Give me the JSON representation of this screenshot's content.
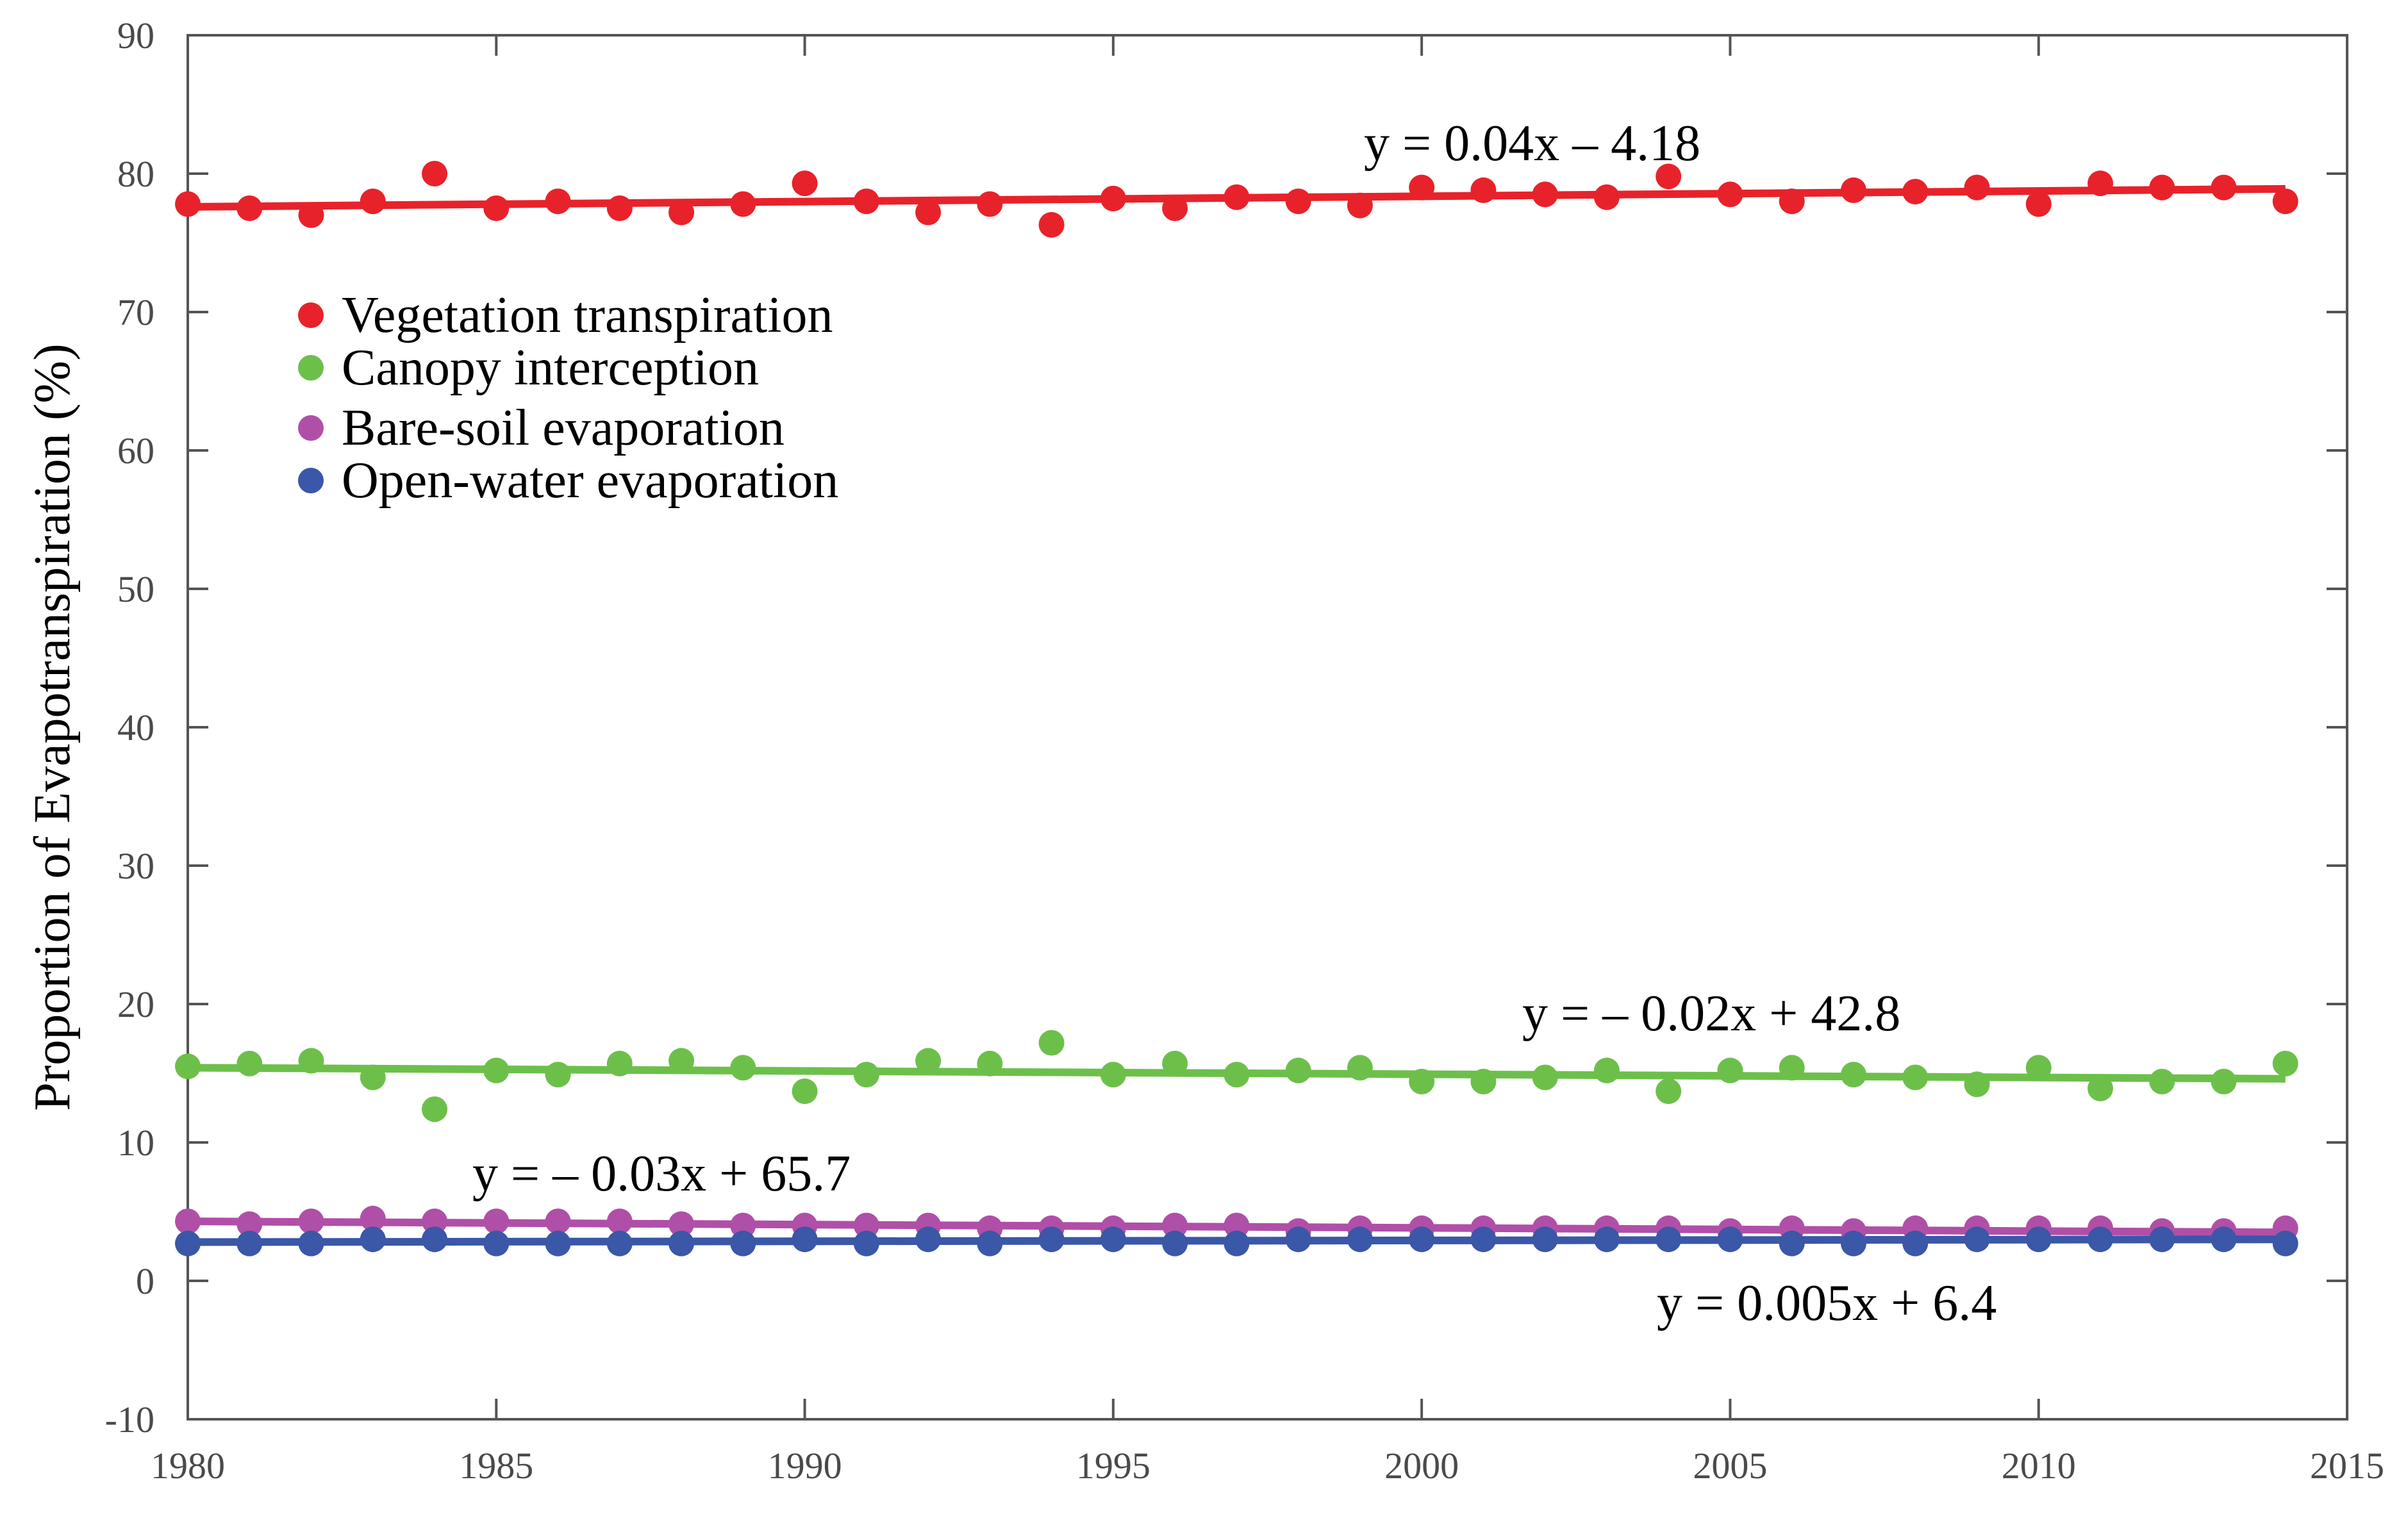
{
  "chart_data": {
    "type": "scatter",
    "title": "",
    "xlabel": "",
    "ylabel": "Proportion of Evapotranspiration (%)",
    "xlim": [
      1980,
      2015
    ],
    "ylim": [
      -10,
      90
    ],
    "x_ticks": [
      "1980",
      "1985",
      "1990",
      "1995",
      "2000",
      "2005",
      "2010",
      "2015"
    ],
    "y_ticks": [
      "-10",
      "0",
      "10",
      "20",
      "30",
      "40",
      "50",
      "60",
      "70",
      "80",
      "90"
    ],
    "grid": false,
    "legend_position": "top-left",
    "x": [
      1980,
      1981,
      1982,
      1983,
      1984,
      1985,
      1986,
      1987,
      1988,
      1989,
      1990,
      1991,
      1992,
      1993,
      1994,
      1995,
      1996,
      1997,
      1998,
      1999,
      2000,
      2001,
      2002,
      2003,
      2004,
      2005,
      2006,
      2007,
      2008,
      2009,
      2010,
      2011,
      2012,
      2013,
      2014
    ],
    "series": [
      {
        "name": "Vegetation transpiration",
        "color": "#e8222a",
        "values": [
          77.8,
          77.5,
          77.0,
          78.0,
          80.0,
          77.5,
          78.0,
          77.5,
          77.2,
          77.8,
          79.3,
          78.0,
          77.2,
          77.8,
          76.3,
          78.2,
          77.5,
          78.3,
          78.0,
          77.7,
          79.0,
          78.8,
          78.5,
          78.3,
          79.8,
          78.5,
          78.0,
          78.8,
          78.7,
          79.0,
          77.8,
          79.3,
          79.0,
          79.0,
          78.0
        ],
        "trend": {
          "equation": "y = 0.04x – 4.18",
          "start": 77.6,
          "end": 78.9
        }
      },
      {
        "name": "Canopy interception",
        "color": "#6cc04a",
        "values": [
          15.5,
          15.7,
          15.9,
          14.7,
          12.4,
          15.2,
          14.9,
          15.7,
          15.9,
          15.4,
          13.7,
          14.9,
          15.9,
          15.7,
          17.2,
          14.9,
          15.7,
          14.9,
          15.2,
          15.4,
          14.4,
          14.4,
          14.7,
          15.2,
          13.7,
          15.2,
          15.4,
          14.9,
          14.7,
          14.2,
          15.4,
          13.9,
          14.4,
          14.4,
          15.7
        ],
        "trend": {
          "equation": "y = – 0.02x + 42.8",
          "start": 15.4,
          "end": 14.6
        }
      },
      {
        "name": "Bare-soil evaporation",
        "color": "#b04fa8",
        "values": [
          4.3,
          4.1,
          4.3,
          4.5,
          4.3,
          4.3,
          4.3,
          4.3,
          4.1,
          4.0,
          4.0,
          4.0,
          4.0,
          3.8,
          3.8,
          3.8,
          4.0,
          4.0,
          3.6,
          3.8,
          3.8,
          3.8,
          3.8,
          3.8,
          3.8,
          3.6,
          3.8,
          3.6,
          3.8,
          3.8,
          3.8,
          3.8,
          3.6,
          3.6,
          3.8
        ],
        "trend": {
          "equation": "y = – 0.03x + 65.7",
          "start": 4.3,
          "end": 3.5
        }
      },
      {
        "name": "Open-water evaporation",
        "color": "#3a57a8",
        "values": [
          2.7,
          2.7,
          2.7,
          3.0,
          3.0,
          2.7,
          2.7,
          2.7,
          2.7,
          2.7,
          3.0,
          2.7,
          3.0,
          2.7,
          3.0,
          3.0,
          2.7,
          2.7,
          3.0,
          3.0,
          3.0,
          3.0,
          3.0,
          3.0,
          3.0,
          3.0,
          2.7,
          2.7,
          2.7,
          3.0,
          3.0,
          3.0,
          3.0,
          3.0,
          2.7
        ],
        "trend": {
          "equation": "y = 0.005x + 6.4",
          "start": 2.8,
          "end": 3.0
        }
      }
    ]
  }
}
